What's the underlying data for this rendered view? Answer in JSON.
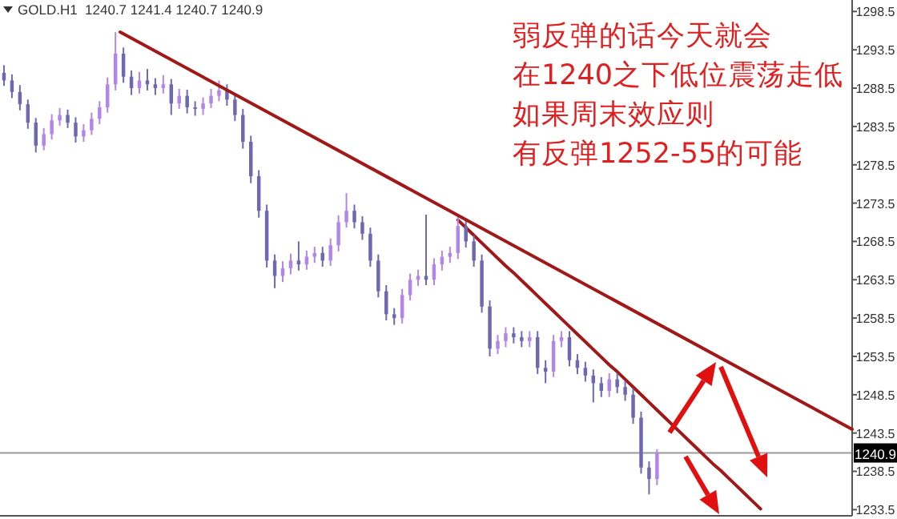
{
  "chart_data": {
    "type": "candlestick",
    "title": "GOLD.H1  1240.7 1241.4 1240.7 1240.9",
    "annotations": [
      "弱反弹的话今天就会",
      "在1240之下低位震荡走低",
      "如果周末效应则",
      "有反弹1252-55的可能"
    ],
    "colors": [
      "#6e68b0",
      "#6e68b0",
      "#6e68b0",
      "#6e68b0",
      "#6e68b0",
      "#b286e8",
      "#b286e8",
      "#b286e8",
      "#6e68b0",
      "#6e68b0",
      "#b286e8",
      "#b286e8",
      "#b286e8",
      "#b286e8",
      "#b286e8",
      "#6e68b0",
      "#6e68b0",
      "#b286e8",
      "#6e68b0",
      "#6e68b0",
      "#b286e8",
      "#6e68b0",
      "#b286e8",
      "#6e68b0",
      "#6e68b0",
      "#b286e8",
      "#b286e8",
      "#b286e8",
      "#6e68b0",
      "#6e68b0",
      "#6e68b0",
      "#6e68b0",
      "#6e68b0",
      "#6e68b0",
      "#6e68b0",
      "#b286e8",
      "#b286e8",
      "#6e68b0",
      "#b286e8",
      "#b286e8",
      "#6e68b0",
      "#b286e8",
      "#b286e8",
      "#b286e8",
      "#6e68b0",
      "#6e68b0",
      "#6e68b0",
      "#6e68b0",
      "#6e68b0",
      "#6e68b0",
      "#b286e8",
      "#b286e8",
      "#b286e8",
      "#6e68b0",
      "#b286e8",
      "#b286e8",
      "#b286e8",
      "#b286e8",
      "#6e68b0",
      "#6e68b0",
      "#6e68b0",
      "#6e68b0",
      "#b286e8",
      "#b286e8",
      "#6e68b0",
      "#6e68b0",
      "#b286e8",
      "#6e68b0",
      "#6e68b0",
      "#b286e8",
      "#b286e8",
      "#6e68b0",
      "#6e68b0",
      "#6e68b0",
      "#6e68b0",
      "#6e68b0",
      "#b286e8",
      "#6e68b0",
      "#6e68b0",
      "#6e68b0",
      "#6e68b0",
      "#6e68b0",
      "#b286e8",
      null,
      null,
      null,
      null,
      null,
      null,
      null,
      null,
      null,
      null,
      null,
      null,
      null,
      null,
      null,
      null,
      null,
      null,
      null,
      null,
      null,
      null,
      null,
      null
    ],
    "series": [
      {
        "type": "line",
        "color": "#a01818",
        "values": [
          null,
          null,
          null,
          null,
          null,
          null,
          null,
          null,
          null,
          null,
          null,
          null,
          null,
          null,
          null,
          null,
          null,
          null,
          null,
          null,
          null,
          null,
          null,
          null,
          null,
          null,
          null,
          null,
          null,
          null,
          null,
          null,
          null,
          null,
          null,
          null,
          null,
          null,
          null,
          null,
          null,
          null,
          null,
          null,
          null,
          null,
          null,
          null,
          null,
          null,
          null,
          null,
          null,
          null,
          null,
          null,
          null,
          1271.3,
          1270.3,
          1269.3,
          1268.3,
          1267.3,
          1266.3,
          1265.3,
          1264.4,
          1263.4,
          1262.4,
          1261.4,
          1260.4,
          1259.4,
          1258.4,
          1257.4,
          1256.4,
          1255.4,
          1254.4,
          1253.4,
          1252.4,
          1251.5,
          1250.5,
          1249.5,
          1248.5,
          1247.5,
          1246.5,
          1245.5,
          1244.5,
          1243.5,
          1242.5,
          1241.5,
          1240.5,
          1239.5,
          1238.6,
          1237.6,
          1236.6,
          1235.6,
          1234.6,
          1233.6,
          null,
          null,
          null,
          null,
          null,
          null,
          null,
          null,
          null,
          null,
          null
        ]
      }
    ],
    "categories": [
      null,
      null,
      null,
      null,
      null,
      null,
      null,
      null,
      null,
      null,
      null,
      null,
      null,
      null,
      null,
      null,
      null,
      null,
      null,
      null,
      null,
      null,
      null,
      null,
      null,
      null,
      null,
      null,
      null,
      null,
      null,
      null,
      null,
      null,
      null,
      null,
      null,
      null,
      null,
      null,
      null,
      null,
      null,
      null,
      null,
      null,
      null,
      null,
      null,
      null,
      null,
      null,
      null,
      null,
      null,
      null,
      null,
      null,
      null,
      null,
      null,
      null,
      null,
      null,
      null,
      null,
      null,
      null,
      null,
      null,
      null,
      null,
      null,
      null,
      null,
      null,
      null,
      null,
      null,
      null,
      null,
      null,
      null,
      null,
      null,
      null,
      null,
      null,
      null,
      null,
      null,
      null,
      null,
      null,
      null,
      null,
      null,
      null,
      null,
      null,
      null,
      null,
      null,
      null,
      null,
      null,
      null
    ],
    "ohlc": [
      [
        1290.5,
        1291.5,
        1288.8,
        1289.5
      ],
      [
        1289.5,
        1290.3,
        1287.2,
        1288.0
      ],
      [
        1288.0,
        1288.9,
        1285.6,
        1286.4
      ],
      [
        1286.4,
        1287.0,
        1283.2,
        1284.0
      ],
      [
        1284.0,
        1284.6,
        1280.1,
        1281.0
      ],
      [
        1281.0,
        1283.3,
        1280.4,
        1282.5
      ],
      [
        1282.5,
        1285.1,
        1281.8,
        1284.3
      ],
      [
        1284.3,
        1285.9,
        1283.6,
        1285.0
      ],
      [
        1285.0,
        1285.7,
        1283.3,
        1284.0
      ],
      [
        1284.0,
        1284.7,
        1281.4,
        1282.2
      ],
      [
        1282.2,
        1283.8,
        1281.5,
        1283.0
      ],
      [
        1283.0,
        1285.3,
        1282.4,
        1284.5
      ],
      [
        1284.5,
        1286.8,
        1283.8,
        1286.0
      ],
      [
        1286.0,
        1289.9,
        1285.3,
        1289.0
      ],
      [
        1289.0,
        1295.8,
        1288.2,
        1293.0
      ],
      [
        1293.0,
        1293.8,
        1289.2,
        1290.0
      ],
      [
        1290.0,
        1290.8,
        1287.6,
        1288.5
      ],
      [
        1288.5,
        1290.6,
        1287.8,
        1289.5
      ],
      [
        1289.5,
        1291.0,
        1288.2,
        1289.0
      ],
      [
        1289.0,
        1289.8,
        1287.6,
        1288.5
      ],
      [
        1288.5,
        1290.2,
        1287.8,
        1289.0
      ],
      [
        1289.0,
        1289.7,
        1285.0,
        1286.5
      ],
      [
        1286.5,
        1288.4,
        1285.8,
        1287.5
      ],
      [
        1287.5,
        1288.3,
        1285.2,
        1286.0
      ],
      [
        1286.0,
        1286.8,
        1284.9,
        1285.8
      ],
      [
        1285.8,
        1287.3,
        1285.0,
        1286.5
      ],
      [
        1286.5,
        1288.4,
        1285.9,
        1287.5
      ],
      [
        1287.5,
        1289.5,
        1286.8,
        1288.2
      ],
      [
        1288.2,
        1289.0,
        1286.2,
        1287.0
      ],
      [
        1287.0,
        1287.8,
        1284.2,
        1285.0
      ],
      [
        1285.0,
        1285.8,
        1280.6,
        1281.5
      ],
      [
        1281.5,
        1282.3,
        1276.1,
        1277.0
      ],
      [
        1277.0,
        1277.8,
        1271.6,
        1272.5
      ],
      [
        1272.5,
        1273.3,
        1265.1,
        1266.0
      ],
      [
        1266.0,
        1266.8,
        1262.4,
        1264.0
      ],
      [
        1264.0,
        1265.9,
        1263.2,
        1265.0
      ],
      [
        1265.0,
        1266.9,
        1264.2,
        1266.0
      ],
      [
        1266.0,
        1268.5,
        1264.7,
        1265.5
      ],
      [
        1265.5,
        1267.3,
        1264.8,
        1266.5
      ],
      [
        1266.5,
        1267.8,
        1265.7,
        1267.0
      ],
      [
        1267.0,
        1267.8,
        1265.2,
        1266.0
      ],
      [
        1266.0,
        1268.9,
        1265.3,
        1268.0
      ],
      [
        1268.0,
        1271.9,
        1267.2,
        1271.0
      ],
      [
        1271.0,
        1274.8,
        1270.3,
        1272.5
      ],
      [
        1272.5,
        1273.3,
        1270.2,
        1271.0
      ],
      [
        1271.0,
        1271.8,
        1268.7,
        1269.5
      ],
      [
        1269.5,
        1270.3,
        1265.2,
        1266.0
      ],
      [
        1266.0,
        1266.8,
        1261.2,
        1262.0
      ],
      [
        1262.0,
        1262.8,
        1258.2,
        1259.0
      ],
      [
        1259.0,
        1259.8,
        1257.6,
        1258.5
      ],
      [
        1258.5,
        1262.3,
        1257.8,
        1261.5
      ],
      [
        1261.5,
        1264.3,
        1260.8,
        1263.5
      ],
      [
        1263.5,
        1264.8,
        1262.7,
        1264.0
      ],
      [
        1264.0,
        1272.0,
        1262.8,
        1263.5
      ],
      [
        1263.5,
        1266.3,
        1262.8,
        1265.5
      ],
      [
        1265.5,
        1267.3,
        1264.7,
        1266.5
      ],
      [
        1266.5,
        1267.8,
        1265.7,
        1267.0
      ],
      [
        1267.0,
        1271.7,
        1266.2,
        1270.5
      ],
      [
        1270.5,
        1271.3,
        1267.7,
        1268.5
      ],
      [
        1268.5,
        1269.3,
        1265.2,
        1266.0
      ],
      [
        1266.0,
        1266.8,
        1259.2,
        1260.0
      ],
      [
        1260.0,
        1260.8,
        1253.5,
        1254.5
      ],
      [
        1254.5,
        1256.3,
        1253.8,
        1255.5
      ],
      [
        1255.5,
        1257.3,
        1254.7,
        1256.5
      ],
      [
        1256.5,
        1257.3,
        1255.2,
        1256.0
      ],
      [
        1256.0,
        1256.8,
        1254.7,
        1255.5
      ],
      [
        1255.5,
        1256.8,
        1254.7,
        1256.0
      ],
      [
        1256.0,
        1256.8,
        1251.2,
        1252.0
      ],
      [
        1252.0,
        1253.0,
        1250.0,
        1251.5
      ],
      [
        1251.5,
        1256.3,
        1250.8,
        1255.5
      ],
      [
        1255.5,
        1256.8,
        1254.7,
        1256.0
      ],
      [
        1256.0,
        1256.8,
        1252.2,
        1253.0
      ],
      [
        1253.0,
        1253.8,
        1251.2,
        1252.0
      ],
      [
        1252.0,
        1252.8,
        1250.2,
        1251.0
      ],
      [
        1251.0,
        1251.8,
        1247.5,
        1250.0
      ],
      [
        1250.0,
        1250.8,
        1248.2,
        1249.0
      ],
      [
        1249.0,
        1251.3,
        1248.2,
        1250.5
      ],
      [
        1250.5,
        1251.3,
        1248.7,
        1249.5
      ],
      [
        1249.5,
        1250.3,
        1247.7,
        1248.5
      ],
      [
        1248.5,
        1249.3,
        1244.7,
        1245.5
      ],
      [
        1245.5,
        1246.3,
        1238.2,
        1239.0
      ],
      [
        1239.0,
        1239.8,
        1235.5,
        1237.5
      ],
      [
        1237.5,
        1241.4,
        1236.7,
        1240.9
      ],
      null,
      null,
      null,
      null,
      null,
      null,
      null,
      null,
      null,
      null,
      null,
      null,
      null,
      null,
      null,
      null,
      null,
      null,
      null,
      null,
      null,
      null,
      null,
      null
    ],
    "ref_lines": [
      {
        "axis": "y",
        "value": 1240.9,
        "label": "1240.9",
        "color": "#9a9a9a"
      }
    ],
    "ylim": [
      1232.7,
      1300
    ],
    "yticks": [
      1233.5,
      1238.5,
      1243.5,
      1248.5,
      1253.5,
      1258.5,
      1263.5,
      1268.5,
      1273.5,
      1278.5,
      1283.5,
      1288.5,
      1293.5,
      1298.5
    ],
    "tick_labels": "y"
  }
}
